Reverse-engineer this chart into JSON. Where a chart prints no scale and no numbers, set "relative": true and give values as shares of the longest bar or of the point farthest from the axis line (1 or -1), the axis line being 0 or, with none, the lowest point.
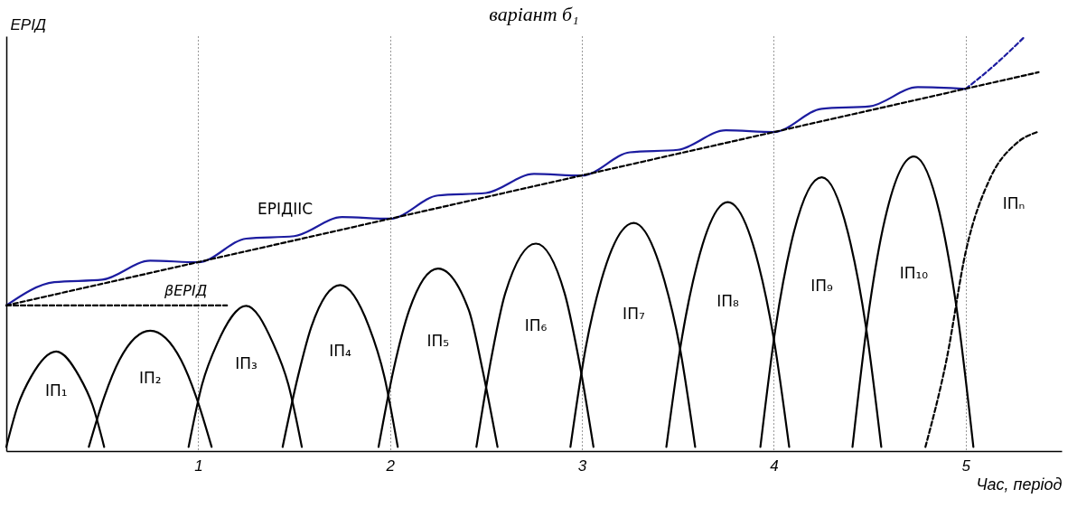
{
  "chart_data": {
    "type": "line",
    "relative": true,
    "title": "варіант б₁",
    "xlabel": "Час, період",
    "ylabel": "ЕРІД",
    "xlim": [
      0,
      5.5
    ],
    "xticks": [
      {
        "value": 1,
        "label": "1"
      },
      {
        "value": 2,
        "label": "2"
      },
      {
        "value": 3,
        "label": "3"
      },
      {
        "value": 4,
        "label": "4"
      },
      {
        "value": 5,
        "label": "5"
      }
    ],
    "grid": "x",
    "tick_labels": "x",
    "annotations": [
      "βЕРІД"
    ],
    "series": [
      {
        "color": "#1c1ca0",
        "line_style": "solid",
        "x": [
          0,
          0.25,
          0.5,
          0.75,
          1,
          1.25,
          1.5,
          1.75,
          2,
          2.25,
          2.5,
          2.75,
          3,
          3.25,
          3.5,
          3.75,
          4,
          4.25,
          4.5,
          4.75,
          5
        ],
        "values": [
          0.351,
          0.407,
          0.413,
          0.459,
          0.455,
          0.512,
          0.518,
          0.564,
          0.56,
          0.616,
          0.622,
          0.668,
          0.664,
          0.72,
          0.726,
          0.773,
          0.769,
          0.825,
          0.831,
          0.877,
          0.873
        ]
      },
      {
        "color": "#1c1ca0",
        "line_style": "dashed",
        "x": [
          5,
          5.15,
          5.31
        ],
        "values": [
          0.873,
          0.93,
          1.0
        ]
      },
      {
        "name": "ЕРІДІІС",
        "color": "#000000",
        "line_style": "dashed",
        "x": [
          0,
          5.38
        ],
        "values": [
          0.351,
          0.913
        ]
      },
      {
        "color": "#000000",
        "line_style": "dashed",
        "x": [
          0,
          1.15
        ],
        "values": [
          0.351,
          0.351
        ]
      },
      {
        "name": "ІП₁",
        "color": "#000000",
        "line_style": "solid",
        "x": [
          0,
          0.06,
          0.13,
          0.26,
          0.38,
          0.45,
          0.51
        ],
        "values": [
          0.01,
          0.11,
          0.18,
          0.24,
          0.18,
          0.11,
          0.01
        ]
      },
      {
        "name": "ІП₂",
        "color": "#000000",
        "line_style": "solid",
        "x": [
          0.43,
          0.51,
          0.59,
          0.75,
          0.91,
          0.99,
          1.07
        ],
        "values": [
          0.01,
          0.13,
          0.22,
          0.29,
          0.22,
          0.13,
          0.01
        ]
      },
      {
        "name": "ІП₃",
        "color": "#000000",
        "line_style": "solid",
        "x": [
          0.95,
          1.02,
          1.1,
          1.25,
          1.39,
          1.47,
          1.54
        ],
        "values": [
          0.01,
          0.16,
          0.26,
          0.35,
          0.26,
          0.16,
          0.01
        ]
      },
      {
        "name": "ІП₄",
        "color": "#000000",
        "line_style": "solid",
        "x": [
          1.44,
          1.52,
          1.59,
          1.74,
          1.89,
          1.97,
          2.04
        ],
        "values": [
          0.01,
          0.18,
          0.3,
          0.4,
          0.3,
          0.18,
          0.01
        ]
      },
      {
        "name": "ІП₅",
        "color": "#000000",
        "line_style": "solid",
        "x": [
          1.94,
          2.02,
          2.1,
          2.25,
          2.41,
          2.48,
          2.56
        ],
        "values": [
          0.01,
          0.2,
          0.34,
          0.44,
          0.34,
          0.2,
          0.01
        ]
      },
      {
        "name": "ІП₆",
        "color": "#000000",
        "line_style": "solid",
        "x": [
          2.45,
          2.53,
          2.6,
          2.76,
          2.91,
          2.98,
          3.06
        ],
        "values": [
          0.01,
          0.23,
          0.38,
          0.5,
          0.38,
          0.23,
          0.01
        ]
      },
      {
        "name": "ІП₇",
        "color": "#000000",
        "line_style": "solid",
        "x": [
          2.94,
          3.02,
          3.1,
          3.27,
          3.43,
          3.51,
          3.59
        ],
        "values": [
          0.01,
          0.25,
          0.41,
          0.55,
          0.41,
          0.25,
          0.01
        ]
      },
      {
        "name": "ІП₈",
        "color": "#000000",
        "line_style": "solid",
        "x": [
          3.44,
          3.52,
          3.6,
          3.76,
          3.92,
          4.0,
          4.08
        ],
        "values": [
          0.01,
          0.27,
          0.45,
          0.6,
          0.45,
          0.27,
          0.01
        ]
      },
      {
        "name": "ІП₉",
        "color": "#000000",
        "line_style": "solid",
        "x": [
          3.93,
          4.01,
          4.09,
          4.25,
          4.4,
          4.48,
          4.56
        ],
        "values": [
          0.01,
          0.3,
          0.5,
          0.66,
          0.5,
          0.3,
          0.01
        ]
      },
      {
        "name": "ІП₁₀",
        "color": "#000000",
        "line_style": "solid",
        "x": [
          4.41,
          4.49,
          4.57,
          4.73,
          4.88,
          4.96,
          5.04
        ],
        "values": [
          0.01,
          0.32,
          0.54,
          0.71,
          0.54,
          0.32,
          0.01
        ]
      },
      {
        "name": "ІПₙ",
        "color": "#000000",
        "line_style": "dashed",
        "x": [
          4.79,
          4.9,
          5.0,
          5.13,
          5.26,
          5.38
        ],
        "values": [
          0.01,
          0.22,
          0.48,
          0.66,
          0.74,
          0.77
        ]
      }
    ]
  }
}
